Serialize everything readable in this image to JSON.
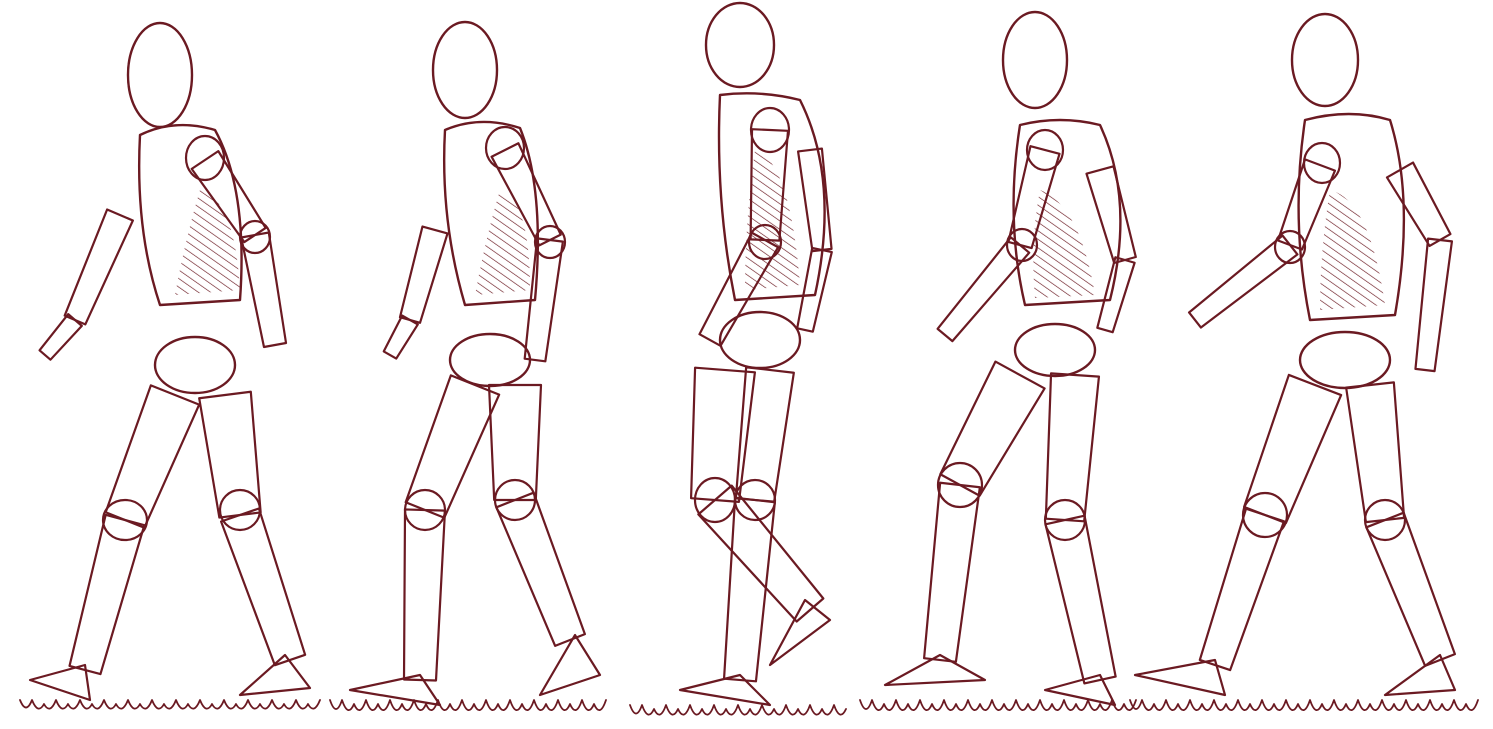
{
  "illustration": {
    "subject": "walk cycle",
    "figure_count": 5,
    "ink_color": "#6b1a22",
    "paper_color": "#ffffff",
    "figures": [
      {
        "pose": "contact-right-leg-forward",
        "facing": "left"
      },
      {
        "pose": "down-position",
        "facing": "left"
      },
      {
        "pose": "passing-position",
        "facing": "left"
      },
      {
        "pose": "up-position",
        "facing": "left"
      },
      {
        "pose": "contact-left-leg-forward",
        "facing": "left"
      }
    ]
  }
}
